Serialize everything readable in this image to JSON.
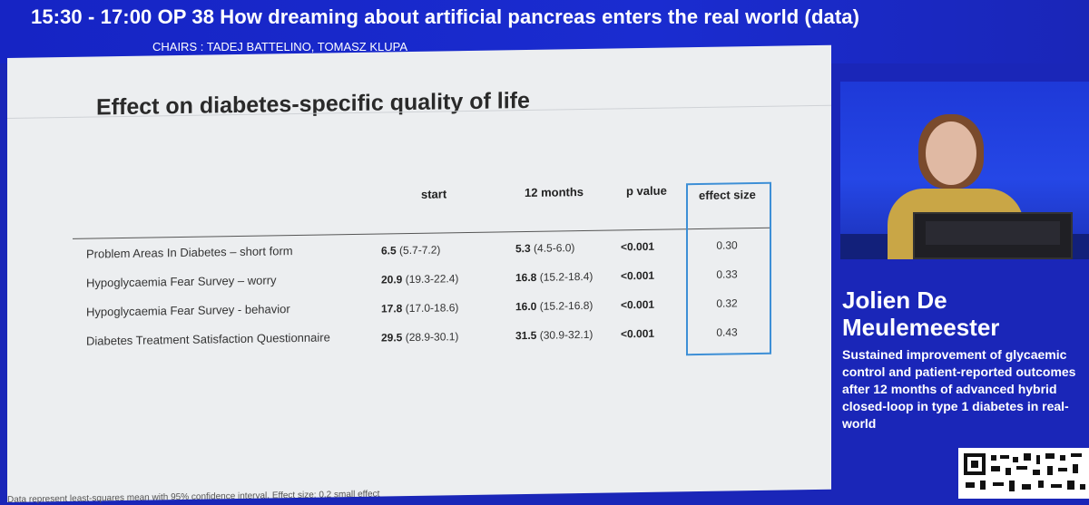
{
  "header": {
    "session_title": "15:30 - 17:00  OP 38 How dreaming about artificial pancreas enters the real world (data)",
    "chairs": "CHAIRS : TADEJ BATTELINO, TOMASZ KLUPA"
  },
  "slide": {
    "heading": "Effect on diabetes-specific quality of life",
    "footnote": "Data represent least-squares mean with 95% confidence interval. Effect size: 0.2 small effect",
    "table": {
      "headers": {
        "start": "start",
        "m12": "12 months",
        "p": "p value",
        "effect": "effect size"
      },
      "rows": [
        {
          "measure": "Problem Areas In Diabetes – short form",
          "start_value": "6.5",
          "start_ci": "(5.7-7.2)",
          "m12_value": "5.3",
          "m12_ci": "(4.5-6.0)",
          "p": "<0.001",
          "effect": "0.30"
        },
        {
          "measure": "Hypoglycaemia Fear Survey – worry",
          "start_value": "20.9",
          "start_ci": "(19.3-22.4)",
          "m12_value": "16.8",
          "m12_ci": "(15.2-18.4)",
          "p": "<0.001",
          "effect": "0.33"
        },
        {
          "measure": "Hypoglycaemia Fear Survey - behavior",
          "start_value": "17.8",
          "start_ci": "(17.0-18.6)",
          "m12_value": "16.0",
          "m12_ci": "(15.2-16.8)",
          "p": "<0.001",
          "effect": "0.32"
        },
        {
          "measure": "Diabetes Treatment Satisfaction Questionnaire",
          "start_value": "29.5",
          "start_ci": "(28.9-30.1)",
          "m12_value": "31.5",
          "m12_ci": "(30.9-32.1)",
          "p": "<0.001",
          "effect": "0.43"
        }
      ]
    }
  },
  "speaker": {
    "name_line1": "Jolien De",
    "name_line2": "Meulemeester",
    "talk_title": "Sustained improvement of glycaemic control and patient-reported outcomes after 12 months of advanced hybrid closed-loop in type 1 diabetes in real-world"
  },
  "colors": {
    "banner_blue": "#1624c4",
    "slide_bg": "#eceef0",
    "effect_box": "#3d8fd6"
  },
  "icons": [
    "qr-code-icon"
  ]
}
